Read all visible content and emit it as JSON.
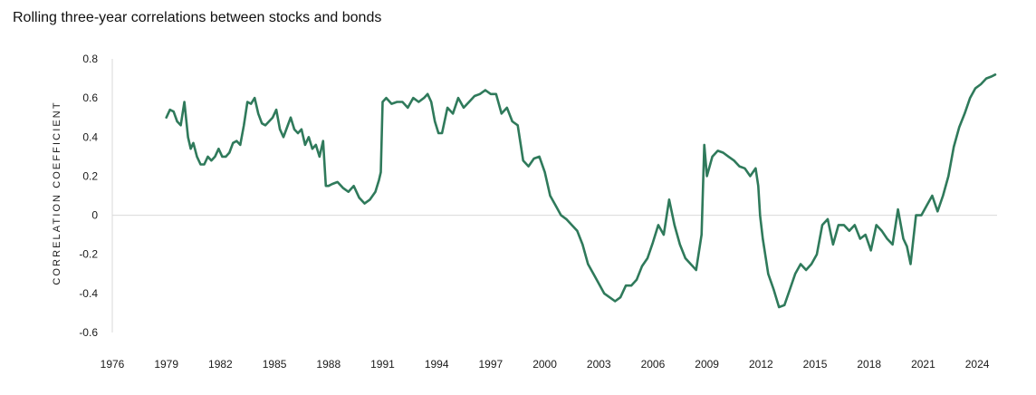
{
  "chart_data": {
    "type": "line",
    "title": "Rolling three-year correlations between stocks and bonds",
    "xlabel": "",
    "ylabel": "CORRELATION COEFFICIENT",
    "xlim": [
      1976,
      2025.1
    ],
    "ylim": [
      -0.6,
      0.8
    ],
    "x_ticks": [
      "1976",
      "1979",
      "1982",
      "1985",
      "1988",
      "1991",
      "1994",
      "1997",
      "2000",
      "2003",
      "2006",
      "2009",
      "2012",
      "2015",
      "2018",
      "2021",
      "2024"
    ],
    "y_ticks": [
      "0.8",
      "0.6",
      "0.4",
      "0.2",
      "0",
      "-0.2",
      "-0.4",
      "-0.6"
    ],
    "grid": false,
    "zero_line": true,
    "line_color": "#2f7a5b",
    "series": [
      {
        "x": [
          1979.0,
          1979.2,
          1979.4,
          1979.6,
          1979.8,
          1980.0,
          1980.2,
          1980.35,
          1980.5,
          1980.7,
          1980.9,
          1981.1,
          1981.3,
          1981.5,
          1981.7,
          1981.9,
          1982.1,
          1982.3,
          1982.5,
          1982.7,
          1982.9,
          1983.1,
          1983.3,
          1983.5,
          1983.7,
          1983.9,
          1984.1,
          1984.3,
          1984.5,
          1984.7,
          1984.9,
          1985.1,
          1985.3,
          1985.5,
          1985.7,
          1985.9,
          1986.1,
          1986.3,
          1986.5,
          1986.7,
          1986.9,
          1987.1,
          1987.3,
          1987.5,
          1987.7,
          1987.85,
          1988.0,
          1988.2,
          1988.5,
          1988.8,
          1989.1,
          1989.4,
          1989.7,
          1990.0,
          1990.3,
          1990.6,
          1990.8,
          1990.9,
          1991.0,
          1991.2,
          1991.5,
          1991.8,
          1992.1,
          1992.4,
          1992.7,
          1993.0,
          1993.3,
          1993.5,
          1993.7,
          1993.9,
          1994.1,
          1994.3,
          1994.6,
          1994.9,
          1995.2,
          1995.5,
          1995.8,
          1996.1,
          1996.4,
          1996.7,
          1997.0,
          1997.3,
          1997.6,
          1997.9,
          1998.2,
          1998.5,
          1998.8,
          1999.1,
          1999.4,
          1999.7,
          2000.0,
          2000.3,
          2000.6,
          2000.9,
          2001.2,
          2001.5,
          2001.8,
          2002.1,
          2002.4,
          2002.7,
          2003.0,
          2003.3,
          2003.6,
          2003.9,
          2004.2,
          2004.5,
          2004.8,
          2005.1,
          2005.4,
          2005.7,
          2006.0,
          2006.3,
          2006.6,
          2006.9,
          2007.2,
          2007.5,
          2007.8,
          2008.1,
          2008.4,
          2008.7,
          2008.85,
          2009.0,
          2009.3,
          2009.6,
          2009.9,
          2010.2,
          2010.5,
          2010.8,
          2011.1,
          2011.4,
          2011.7,
          2011.85,
          2011.95,
          2012.1,
          2012.4,
          2012.7,
          2013.0,
          2013.3,
          2013.6,
          2013.9,
          2014.2,
          2014.5,
          2014.8,
          2015.1,
          2015.4,
          2015.7,
          2016.0,
          2016.3,
          2016.6,
          2016.9,
          2017.2,
          2017.5,
          2017.8,
          2018.1,
          2018.4,
          2018.7,
          2019.0,
          2019.3,
          2019.6,
          2019.9,
          2020.1,
          2020.3,
          2020.6,
          2020.9,
          2021.2,
          2021.5,
          2021.8,
          2022.1,
          2022.4,
          2022.7,
          2023.0,
          2023.3,
          2023.6,
          2023.9,
          2024.2,
          2024.5,
          2024.8,
          2025.0
        ],
        "y": [
          0.5,
          0.54,
          0.53,
          0.48,
          0.46,
          0.58,
          0.4,
          0.34,
          0.37,
          0.3,
          0.26,
          0.26,
          0.3,
          0.28,
          0.3,
          0.34,
          0.3,
          0.3,
          0.32,
          0.37,
          0.38,
          0.36,
          0.46,
          0.58,
          0.57,
          0.6,
          0.52,
          0.47,
          0.46,
          0.48,
          0.5,
          0.54,
          0.44,
          0.4,
          0.45,
          0.5,
          0.44,
          0.42,
          0.44,
          0.36,
          0.4,
          0.34,
          0.36,
          0.3,
          0.38,
          0.15,
          0.15,
          0.16,
          0.17,
          0.14,
          0.12,
          0.15,
          0.09,
          0.06,
          0.08,
          0.12,
          0.18,
          0.22,
          0.58,
          0.6,
          0.57,
          0.58,
          0.58,
          0.55,
          0.6,
          0.58,
          0.6,
          0.62,
          0.58,
          0.48,
          0.42,
          0.42,
          0.55,
          0.52,
          0.6,
          0.55,
          0.58,
          0.61,
          0.62,
          0.64,
          0.62,
          0.62,
          0.52,
          0.55,
          0.48,
          0.46,
          0.28,
          0.25,
          0.29,
          0.3,
          0.22,
          0.1,
          0.05,
          0.0,
          -0.02,
          -0.05,
          -0.08,
          -0.15,
          -0.25,
          -0.3,
          -0.35,
          -0.4,
          -0.42,
          -0.44,
          -0.42,
          -0.36,
          -0.36,
          -0.33,
          -0.26,
          -0.22,
          -0.14,
          -0.05,
          -0.1,
          0.08,
          -0.05,
          -0.15,
          -0.22,
          -0.25,
          -0.28,
          -0.1,
          0.36,
          0.2,
          0.3,
          0.33,
          0.32,
          0.3,
          0.28,
          0.25,
          0.24,
          0.2,
          0.24,
          0.15,
          0.0,
          -0.12,
          -0.3,
          -0.38,
          -0.47,
          -0.46,
          -0.38,
          -0.3,
          -0.25,
          -0.28,
          -0.25,
          -0.2,
          -0.05,
          -0.02,
          -0.15,
          -0.05,
          -0.05,
          -0.08,
          -0.05,
          -0.12,
          -0.1,
          -0.18,
          -0.05,
          -0.08,
          -0.12,
          -0.15,
          0.03,
          -0.12,
          -0.16,
          -0.25,
          0.0,
          0.0,
          0.05,
          0.1,
          0.02,
          0.1,
          0.2,
          0.35,
          0.45,
          0.52,
          0.6,
          0.65,
          0.67,
          0.7,
          0.71,
          0.72
        ]
      }
    ]
  }
}
